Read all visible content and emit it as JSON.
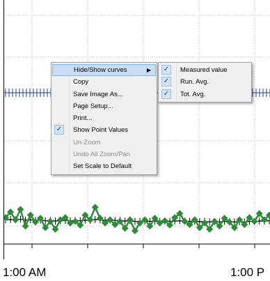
{
  "chart": {
    "x_tick_labels": [
      "1:00 AM",
      "1:00 P"
    ],
    "colors": {
      "measured": "#2e8b3a",
      "average": "#000000",
      "grid": "#b8b8b8"
    }
  },
  "chart_data": {
    "type": "line",
    "x": [
      0,
      1,
      2,
      3,
      4,
      5,
      6,
      7,
      8,
      9,
      10,
      11,
      12,
      13,
      14,
      15,
      16,
      17,
      18,
      19,
      20,
      21,
      22,
      23,
      24,
      25,
      26,
      27,
      28,
      29,
      30,
      31,
      32,
      33,
      34,
      35,
      36,
      37,
      38,
      39,
      40,
      41,
      42,
      43,
      44,
      45,
      46,
      47,
      48,
      49,
      50,
      51,
      52,
      53
    ],
    "series": [
      {
        "values": [
          0.62,
          0.8,
          0.55,
          0.88,
          0.35,
          0.7,
          0.48,
          0.6,
          0.3,
          0.5,
          0.25,
          0.55,
          0.62,
          0.45,
          0.5,
          0.38,
          0.7,
          0.55,
          0.95,
          0.6,
          0.45,
          0.55,
          0.4,
          0.5,
          0.28,
          0.55,
          0.2,
          0.45,
          0.55,
          0.35,
          0.6,
          0.45,
          0.52,
          0.38,
          0.62,
          0.75,
          0.5,
          0.4,
          0.55,
          0.3,
          0.45,
          0.25,
          0.5,
          0.35,
          0.6,
          0.48,
          0.3,
          0.55,
          0.4,
          0.62,
          0.5,
          0.75,
          0.55,
          0.7
        ]
      },
      {
        "values": [
          0.55,
          0.56,
          0.55,
          0.57,
          0.54,
          0.55,
          0.53,
          0.54,
          0.52,
          0.53,
          0.51,
          0.52,
          0.53,
          0.52,
          0.53,
          0.52,
          0.54,
          0.53,
          0.56,
          0.55,
          0.54,
          0.54,
          0.53,
          0.53,
          0.51,
          0.52,
          0.5,
          0.5,
          0.51,
          0.5,
          0.51,
          0.5,
          0.51,
          0.5,
          0.51,
          0.52,
          0.51,
          0.5,
          0.51,
          0.49,
          0.5,
          0.48,
          0.49,
          0.48,
          0.5,
          0.49,
          0.48,
          0.49,
          0.48,
          0.5,
          0.5,
          0.51,
          0.51,
          0.52
        ]
      }
    ],
    "reference_row": true,
    "grid": true
  },
  "context_menu": {
    "items": [
      {
        "label": "Hide/Show curves",
        "checked": false,
        "disabled": false,
        "submenu": true,
        "highlighted": true
      },
      {
        "label": "Copy",
        "checked": false,
        "disabled": false
      },
      {
        "label": "Save Image As...",
        "checked": false,
        "disabled": false
      },
      {
        "label": "Page Setup...",
        "checked": false,
        "disabled": false
      },
      {
        "label": "Print...",
        "checked": false,
        "disabled": false
      },
      {
        "label": "Show Point Values",
        "checked": true,
        "disabled": false
      },
      {
        "label": "Un-Zoom",
        "checked": false,
        "disabled": true
      },
      {
        "label": "Undo All Zoom/Pan",
        "checked": false,
        "disabled": true
      },
      {
        "label": "Set Scale to Default",
        "checked": false,
        "disabled": false
      }
    ]
  },
  "submenu": {
    "items": [
      {
        "label": "Measured value",
        "checked": true
      },
      {
        "label": "Run. Avg.",
        "checked": true
      },
      {
        "label": "Tot. Avg.",
        "checked": true
      }
    ]
  }
}
